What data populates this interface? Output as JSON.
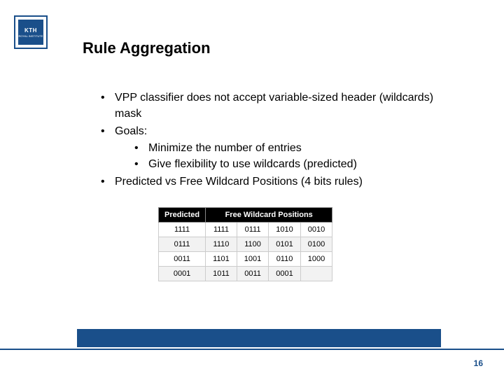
{
  "logo": {
    "main": "KTH",
    "sub": "ROYAL INSTITUTE"
  },
  "title": "Rule Aggregation",
  "bullets": {
    "b1": "VPP classifier does not accept variable-sized header (wildcards) mask",
    "b2": "Goals:",
    "b2a": "Minimize the number of entries",
    "b2b": "Give flexibility to use wildcards (predicted)",
    "b3": "Predicted vs Free Wildcard Positions (4 bits rules)"
  },
  "table": {
    "headers": {
      "h1": "Predicted",
      "h2": "Free Wildcard Positions"
    },
    "rows": [
      [
        "1111",
        "1111",
        "0111",
        "1010",
        "0010"
      ],
      [
        "0111",
        "1110",
        "1100",
        "0101",
        "0100"
      ],
      [
        "0011",
        "1101",
        "1001",
        "0110",
        "1000"
      ],
      [
        "0001",
        "1011",
        "0011",
        "0001",
        ""
      ]
    ]
  },
  "pagenum": "16",
  "colors": {
    "brand": "#1a4f8a",
    "thbg": "#000000",
    "thfg": "#ffffff"
  }
}
